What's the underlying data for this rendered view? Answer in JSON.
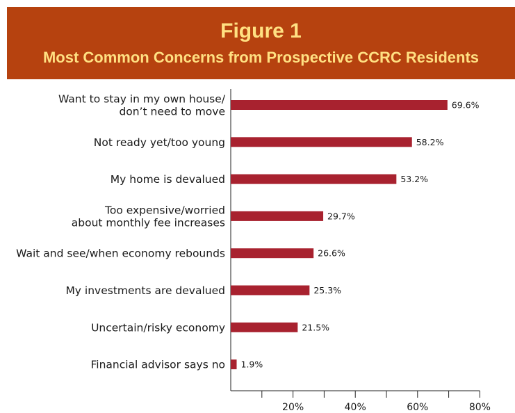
{
  "title": "Figure 1",
  "subtitle": "Most Common Concerns from Prospective CCRC Residents",
  "colors": {
    "banner": "#b6420f",
    "banner_text": "#ffe082",
    "bar": "#a8222f"
  },
  "chart_data": {
    "type": "bar",
    "orientation": "horizontal",
    "title": "Figure 1",
    "subtitle": "Most Common Concerns from Prospective CCRC Residents",
    "categories": [
      [
        "Want to stay in my own house/",
        "don’t need to move"
      ],
      [
        "Not ready yet/too young"
      ],
      [
        "My home is devalued"
      ],
      [
        "Too expensive/worried",
        "about monthly fee increases"
      ],
      [
        "Wait and see/when economy rebounds"
      ],
      [
        "My investments are devalued"
      ],
      [
        "Uncertain/risky economy"
      ],
      [
        "Financial advisor says no"
      ]
    ],
    "values": [
      69.6,
      58.2,
      53.2,
      29.7,
      26.6,
      25.3,
      21.5,
      1.9
    ],
    "value_labels": [
      "69.6%",
      "58.2%",
      "53.2%",
      "29.7%",
      "26.6%",
      "25.3%",
      "21.5%",
      "1.9%"
    ],
    "xlim": [
      0,
      80
    ],
    "major_ticks": [
      0,
      10,
      20,
      30,
      40,
      50,
      60,
      70,
      80
    ],
    "tick_labels": [
      {
        "value": 20,
        "label": "20%"
      },
      {
        "value": 40,
        "label": "40%"
      },
      {
        "value": 60,
        "label": "60%"
      },
      {
        "value": 80,
        "label": "80%"
      }
    ],
    "xlabel": "",
    "ylabel": "",
    "grid": false,
    "legend": "none"
  }
}
